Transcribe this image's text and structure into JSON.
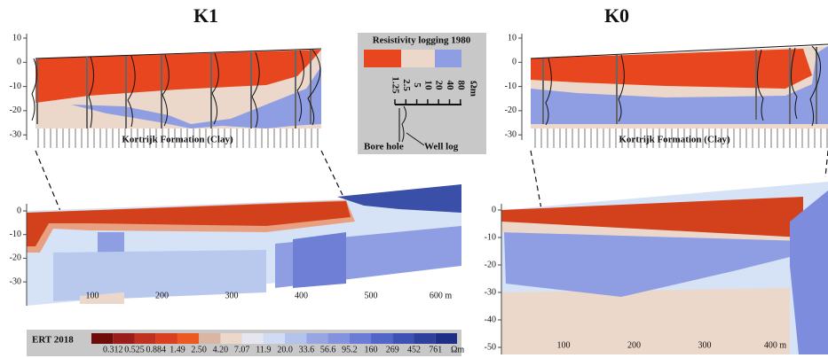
{
  "panels": {
    "k1": {
      "title": "K1",
      "formation": "Kortrijk Formation (Clay)",
      "yticks": [
        "10",
        "0",
        "-10",
        "-20",
        "-30"
      ]
    },
    "k0": {
      "title": "K0",
      "formation": "Kortrijk Formation (Clay)",
      "yticks": [
        "10",
        "0",
        "-10",
        "-20",
        "-30"
      ]
    }
  },
  "resistivity_legend": {
    "title": "Resistivity logging 1980",
    "scale": [
      "1.25",
      "2.5",
      "5",
      "10",
      "20",
      "40",
      "80"
    ],
    "unit": "Ωm",
    "bore_hole": "Bore hole",
    "well_log": "Well log"
  },
  "ert_k1": {
    "yticks": [
      "0",
      "-10",
      "-20",
      "-30"
    ],
    "xticks": [
      "100",
      "200",
      "300",
      "400",
      "500",
      "600 m"
    ]
  },
  "ert_k0": {
    "yticks": [
      "0",
      "-10",
      "-20",
      "-30",
      "-40",
      "-50"
    ],
    "xticks": [
      "100",
      "200",
      "300",
      "400 m"
    ]
  },
  "ert_legend": {
    "title": "ERT 2018",
    "values": [
      "0.312",
      "0.525",
      "0.884",
      "1.49",
      "2.50",
      "4.20",
      "7.07",
      "11.9",
      "20.0",
      "33.6",
      "56.6",
      "95.2",
      "160",
      "269",
      "452",
      "761"
    ],
    "unit": "Ωm"
  }
}
